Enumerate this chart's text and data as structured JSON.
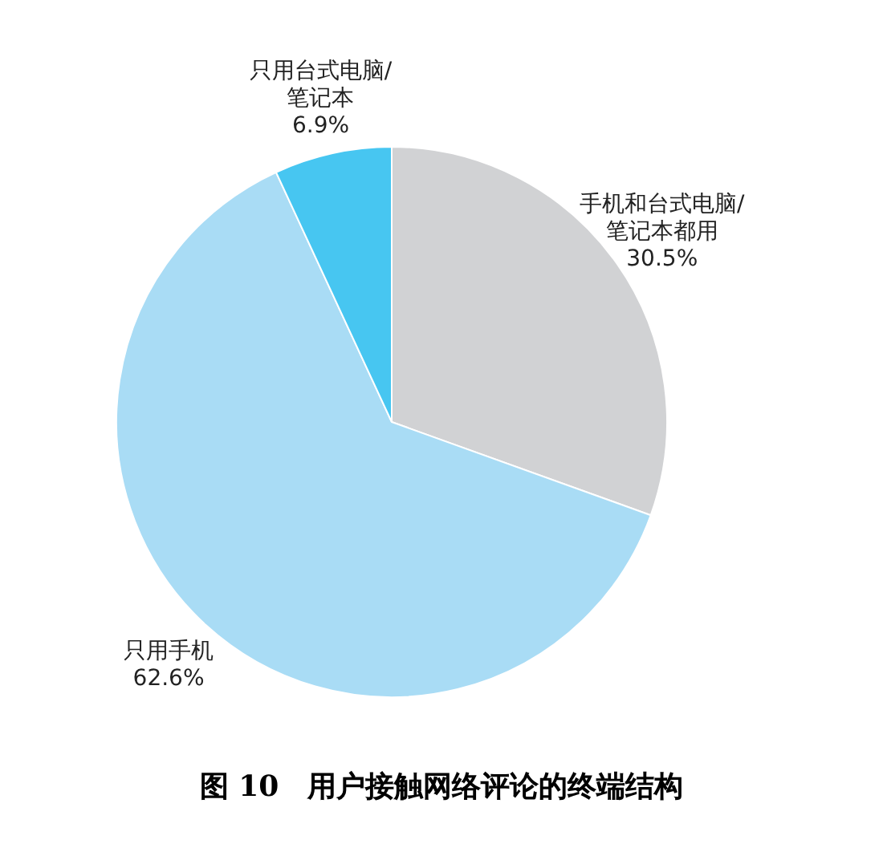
{
  "chart_data": {
    "type": "pie",
    "title": "图 10　用户接触网络评论的终端结构",
    "categories": [
      "手机和台式电脑/笔记本都用",
      "只用手机",
      "只用台式电脑/笔记本"
    ],
    "values": [
      30.5,
      62.6,
      6.9
    ],
    "colors": [
      "#d1d2d4",
      "#a9dcf5",
      "#47c6f1"
    ],
    "value_labels": [
      "30.5%",
      "62.6%",
      "6.9%"
    ],
    "legend": false
  }
}
